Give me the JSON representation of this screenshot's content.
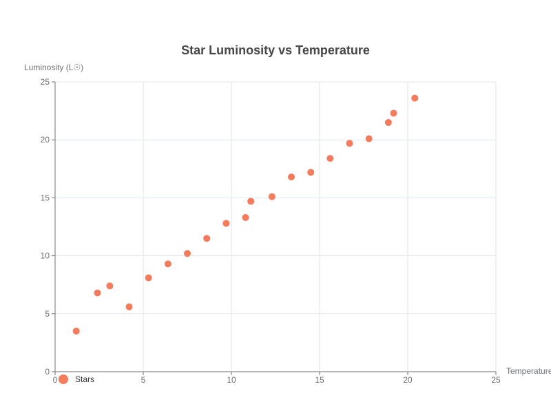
{
  "chart_data": {
    "type": "scatter",
    "title": "Star Luminosity vs Temperature",
    "xlabel": "Temperature",
    "ylabel": "Luminosity (L☉)",
    "xlim": [
      0,
      25
    ],
    "ylim": [
      0,
      25
    ],
    "xticks": [
      0,
      5,
      10,
      15,
      20,
      25
    ],
    "yticks": [
      0,
      5,
      10,
      15,
      20,
      25
    ],
    "grid": true,
    "legend_position": "bottom-left",
    "series": [
      {
        "name": "Stars",
        "color": "#f47b5c",
        "points": [
          {
            "x": 1.2,
            "y": 3.5
          },
          {
            "x": 2.4,
            "y": 6.8
          },
          {
            "x": 3.1,
            "y": 7.4
          },
          {
            "x": 4.2,
            "y": 5.6
          },
          {
            "x": 5.3,
            "y": 8.1
          },
          {
            "x": 6.4,
            "y": 9.3
          },
          {
            "x": 7.5,
            "y": 10.2
          },
          {
            "x": 8.6,
            "y": 11.5
          },
          {
            "x": 9.7,
            "y": 12.8
          },
          {
            "x": 10.8,
            "y": 13.3
          },
          {
            "x": 11.1,
            "y": 14.7
          },
          {
            "x": 12.3,
            "y": 15.1
          },
          {
            "x": 13.4,
            "y": 16.8
          },
          {
            "x": 14.5,
            "y": 17.2
          },
          {
            "x": 15.6,
            "y": 18.4
          },
          {
            "x": 16.7,
            "y": 19.7
          },
          {
            "x": 17.8,
            "y": 20.1
          },
          {
            "x": 18.9,
            "y": 21.5
          },
          {
            "x": 19.2,
            "y": 22.3
          },
          {
            "x": 20.4,
            "y": 23.6
          }
        ]
      }
    ]
  }
}
